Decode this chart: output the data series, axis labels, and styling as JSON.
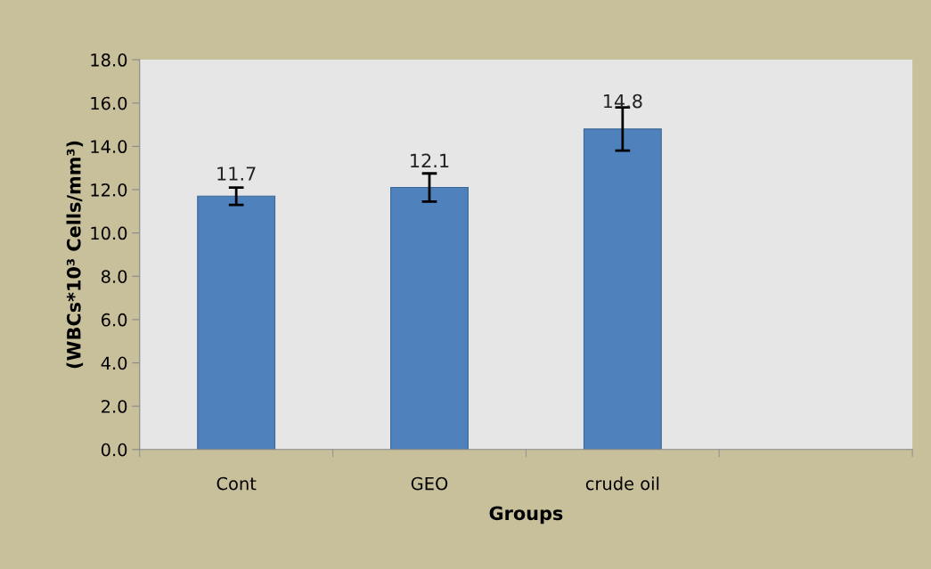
{
  "chart_data": {
    "type": "bar",
    "xlabel": "Groups",
    "ylabel": "(WBCs*10³ Cells/mm³)",
    "categories": [
      "Cont",
      "GEO",
      "crude oil",
      null
    ],
    "values": [
      11.7,
      12.1,
      14.8,
      null
    ],
    "errors": [
      0.4,
      0.65,
      1.0,
      null
    ],
    "color": "#4f81bd",
    "data_labels": true,
    "ylim": [
      0,
      18
    ],
    "yticks": [
      {
        "value": 0,
        "label": "0.0"
      },
      {
        "value": 2,
        "label": "2.0"
      },
      {
        "value": 4,
        "label": "4.0"
      },
      {
        "value": 6,
        "label": "6.0"
      },
      {
        "value": 8,
        "label": "8.0"
      },
      {
        "value": 10,
        "label": "10.0"
      },
      {
        "value": 12,
        "label": "12.0"
      },
      {
        "value": 14,
        "label": "14.0"
      },
      {
        "value": 16,
        "label": "16.0"
      },
      {
        "value": 18,
        "label": "18.0"
      }
    ],
    "grid": false,
    "legend": false
  }
}
